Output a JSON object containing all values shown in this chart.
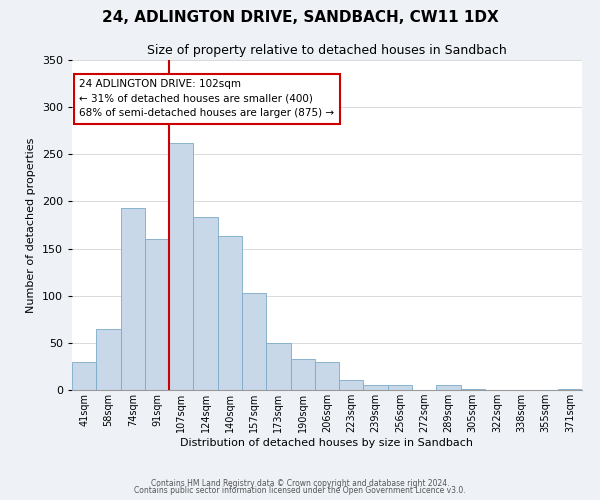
{
  "title": "24, ADLINGTON DRIVE, SANDBACH, CW11 1DX",
  "subtitle": "Size of property relative to detached houses in Sandbach",
  "xlabel": "Distribution of detached houses by size in Sandbach",
  "ylabel": "Number of detached properties",
  "bin_labels": [
    "41sqm",
    "58sqm",
    "74sqm",
    "91sqm",
    "107sqm",
    "124sqm",
    "140sqm",
    "157sqm",
    "173sqm",
    "190sqm",
    "206sqm",
    "223sqm",
    "239sqm",
    "256sqm",
    "272sqm",
    "289sqm",
    "305sqm",
    "322sqm",
    "338sqm",
    "355sqm",
    "371sqm"
  ],
  "bar_heights": [
    30,
    65,
    193,
    160,
    262,
    184,
    163,
    103,
    50,
    33,
    30,
    11,
    5,
    5,
    0,
    5,
    1,
    0,
    0,
    0,
    1
  ],
  "bar_color": "#c8d8e8",
  "bar_edge_color": "#7aaac8",
  "vline_x_index": 4,
  "vline_color": "#cc0000",
  "annotation_text": "24 ADLINGTON DRIVE: 102sqm\n← 31% of detached houses are smaller (400)\n68% of semi-detached houses are larger (875) →",
  "annotation_box_color": "#ffffff",
  "annotation_box_edge_color": "#cc0000",
  "ylim": [
    0,
    350
  ],
  "yticks": [
    0,
    50,
    100,
    150,
    200,
    250,
    300,
    350
  ],
  "footer_line1": "Contains HM Land Registry data © Crown copyright and database right 2024.",
  "footer_line2": "Contains public sector information licensed under the Open Government Licence v3.0.",
  "background_color": "#eef2f7",
  "plot_background_color": "#ffffff"
}
